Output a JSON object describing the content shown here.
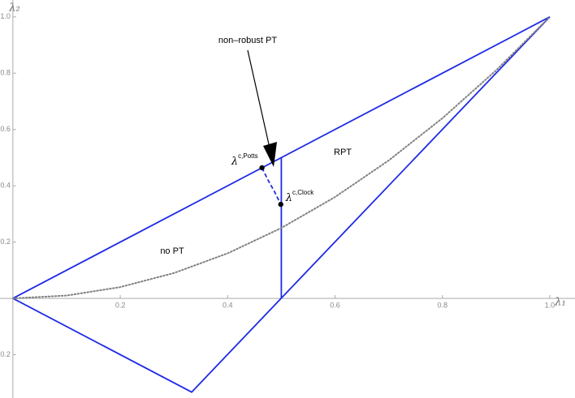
{
  "chart_data": {
    "type": "line",
    "xlabel": "λ₁",
    "ylabel": "λ₂",
    "xlim": [
      -0.024,
      1.047
    ],
    "ylim": [
      -0.354,
      1.06
    ],
    "xticks": [
      0.2,
      0.4,
      0.6,
      0.8,
      {
        "value": 1,
        "label": "1.0"
      }
    ],
    "yticks": [
      -0.2,
      0.2,
      0.4,
      0.6,
      0.8,
      {
        "value": 1,
        "label": "1.0"
      }
    ],
    "series": [
      {
        "color": "#1f2be6",
        "style": "solid",
        "x": [
          0,
          1,
          0.333,
          0
        ],
        "values": [
          0,
          1,
          -0.333,
          0
        ]
      },
      {
        "color": "#1f2be6",
        "style": "solid",
        "x": [
          0.5,
          0.5
        ],
        "values": [
          0,
          0.5
        ]
      },
      {
        "color": "#1f2be6",
        "style": "dashed",
        "x": [
          0.464,
          0.475,
          0.487,
          0.499
        ],
        "values": [
          0.464,
          0.421,
          0.38,
          0.334
        ]
      },
      {
        "color": "#808080",
        "style": "dotted",
        "x": [
          0,
          0.1,
          0.2,
          0.3,
          0.4,
          0.5,
          0.6,
          0.7,
          0.8,
          0.9,
          1
        ],
        "values": [
          0,
          0.01,
          0.04,
          0.09,
          0.16,
          0.25,
          0.36,
          0.49,
          0.64,
          0.81,
          1
        ]
      }
    ],
    "points": [
      {
        "base": "λ",
        "sup": "c,Potts",
        "x": 0.464,
        "y": 0.464
      },
      {
        "base": "λ",
        "sup": "c,Clock",
        "x": 0.499,
        "y": 0.334
      }
    ],
    "annotations": [
      "non–robust PT",
      "RPT",
      "no PT"
    ]
  }
}
